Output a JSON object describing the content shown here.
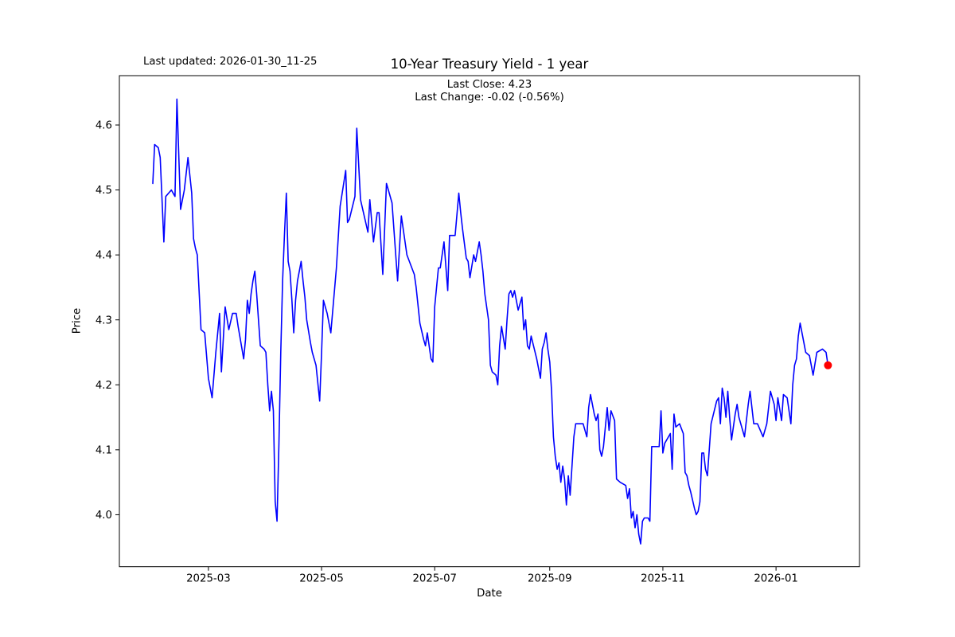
{
  "header": {
    "last_updated": "Last updated: 2026-01-30_11-25",
    "title": "10-Year Treasury Yield - 1 year",
    "annotation_line1": "Last Close: 4.23",
    "annotation_line2": "Last Change: -0.02 (-0.56%)"
  },
  "chart_data": {
    "type": "line",
    "title": "10-Year Treasury Yield - 1 year",
    "xlabel": "Date",
    "ylabel": "Price",
    "last_close": 4.23,
    "last_change": "-0.02 (-0.56%)",
    "grid": false,
    "legend": "none",
    "line_color": "#0000ff",
    "last_point_color": "#ff0000",
    "frame_color": "#000000",
    "background_color": "#ffffff",
    "ylim": [
      3.92,
      4.676
    ],
    "xlim": [
      "2025-01-12",
      "2026-02-15"
    ],
    "y_ticks": [
      4.0,
      4.1,
      4.2,
      4.3,
      4.4,
      4.5,
      4.6
    ],
    "x_ticks": [
      {
        "label": "2025-03",
        "date": "2025-03-01"
      },
      {
        "label": "2025-05",
        "date": "2025-05-01"
      },
      {
        "label": "2025-07",
        "date": "2025-07-01"
      },
      {
        "label": "2025-09",
        "date": "2025-09-01"
      },
      {
        "label": "2025-11",
        "date": "2025-11-01"
      },
      {
        "label": "2026-01",
        "date": "2026-01-01"
      }
    ],
    "series": [
      {
        "name": "10-Year Treasury Yield",
        "points": [
          [
            "2025-01-30",
            4.51
          ],
          [
            "2025-01-31",
            4.57
          ],
          [
            "2025-02-02",
            4.565
          ],
          [
            "2025-02-03",
            4.55
          ],
          [
            "2025-02-05",
            4.42
          ],
          [
            "2025-02-06",
            4.49
          ],
          [
            "2025-02-09",
            4.5
          ],
          [
            "2025-02-11",
            4.49
          ],
          [
            "2025-02-12",
            4.64
          ],
          [
            "2025-02-14",
            4.47
          ],
          [
            "2025-02-16",
            4.5
          ],
          [
            "2025-02-18",
            4.55
          ],
          [
            "2025-02-20",
            4.495
          ],
          [
            "2025-02-21",
            4.425
          ],
          [
            "2025-02-22",
            4.41
          ],
          [
            "2025-02-23",
            4.4
          ],
          [
            "2025-02-25",
            4.285
          ],
          [
            "2025-02-27",
            4.28
          ],
          [
            "2025-03-01",
            4.21
          ],
          [
            "2025-03-03",
            4.18
          ],
          [
            "2025-03-05",
            4.25
          ],
          [
            "2025-03-07",
            4.31
          ],
          [
            "2025-03-08",
            4.22
          ],
          [
            "2025-03-10",
            4.32
          ],
          [
            "2025-03-12",
            4.285
          ],
          [
            "2025-03-14",
            4.31
          ],
          [
            "2025-03-16",
            4.31
          ],
          [
            "2025-03-17",
            4.29
          ],
          [
            "2025-03-20",
            4.24
          ],
          [
            "2025-03-21",
            4.27
          ],
          [
            "2025-03-22",
            4.33
          ],
          [
            "2025-03-23",
            4.31
          ],
          [
            "2025-03-24",
            4.34
          ],
          [
            "2025-03-25",
            4.36
          ],
          [
            "2025-03-26",
            4.375
          ],
          [
            "2025-03-27",
            4.34
          ],
          [
            "2025-03-29",
            4.26
          ],
          [
            "2025-03-31",
            4.255
          ],
          [
            "2025-04-01",
            4.25
          ],
          [
            "2025-04-02",
            4.2
          ],
          [
            "2025-04-03",
            4.16
          ],
          [
            "2025-04-04",
            4.19
          ],
          [
            "2025-04-05",
            4.16
          ],
          [
            "2025-04-06",
            4.02
          ],
          [
            "2025-04-07",
            3.99
          ],
          [
            "2025-04-08",
            4.11
          ],
          [
            "2025-04-09",
            4.25
          ],
          [
            "2025-04-10",
            4.36
          ],
          [
            "2025-04-11",
            4.43
          ],
          [
            "2025-04-12",
            4.495
          ],
          [
            "2025-04-13",
            4.39
          ],
          [
            "2025-04-14",
            4.375
          ],
          [
            "2025-04-15",
            4.33
          ],
          [
            "2025-04-16",
            4.28
          ],
          [
            "2025-04-17",
            4.33
          ],
          [
            "2025-04-18",
            4.36
          ],
          [
            "2025-04-20",
            4.39
          ],
          [
            "2025-04-21",
            4.36
          ],
          [
            "2025-04-22",
            4.335
          ],
          [
            "2025-04-23",
            4.3
          ],
          [
            "2025-04-25",
            4.265
          ],
          [
            "2025-04-26",
            4.25
          ],
          [
            "2025-04-28",
            4.23
          ],
          [
            "2025-04-30",
            4.175
          ],
          [
            "2025-05-01",
            4.25
          ],
          [
            "2025-05-02",
            4.33
          ],
          [
            "2025-05-04",
            4.31
          ],
          [
            "2025-05-06",
            4.28
          ],
          [
            "2025-05-09",
            4.38
          ],
          [
            "2025-05-11",
            4.475
          ],
          [
            "2025-05-14",
            4.53
          ],
          [
            "2025-05-15",
            4.45
          ],
          [
            "2025-05-16",
            4.455
          ],
          [
            "2025-05-19",
            4.49
          ],
          [
            "2025-05-20",
            4.595
          ],
          [
            "2025-05-22",
            4.485
          ],
          [
            "2025-05-26",
            4.435
          ],
          [
            "2025-05-27",
            4.485
          ],
          [
            "2025-05-29",
            4.42
          ],
          [
            "2025-05-31",
            4.465
          ],
          [
            "2025-06-01",
            4.465
          ],
          [
            "2025-06-03",
            4.37
          ],
          [
            "2025-06-05",
            4.51
          ],
          [
            "2025-06-06",
            4.5
          ],
          [
            "2025-06-08",
            4.48
          ],
          [
            "2025-06-11",
            4.36
          ],
          [
            "2025-06-13",
            4.46
          ],
          [
            "2025-06-16",
            4.4
          ],
          [
            "2025-06-20",
            4.37
          ],
          [
            "2025-06-21",
            4.35
          ],
          [
            "2025-06-23",
            4.295
          ],
          [
            "2025-06-25",
            4.27
          ],
          [
            "2025-06-26",
            4.26
          ],
          [
            "2025-06-27",
            4.28
          ],
          [
            "2025-06-29",
            4.24
          ],
          [
            "2025-06-30",
            4.235
          ],
          [
            "2025-07-01",
            4.32
          ],
          [
            "2025-07-03",
            4.38
          ],
          [
            "2025-07-04",
            4.38
          ],
          [
            "2025-07-06",
            4.42
          ],
          [
            "2025-07-08",
            4.345
          ],
          [
            "2025-07-09",
            4.43
          ],
          [
            "2025-07-12",
            4.43
          ],
          [
            "2025-07-14",
            4.495
          ],
          [
            "2025-07-15",
            4.465
          ],
          [
            "2025-07-16",
            4.44
          ],
          [
            "2025-07-18",
            4.395
          ],
          [
            "2025-07-19",
            4.39
          ],
          [
            "2025-07-20",
            4.365
          ],
          [
            "2025-07-22",
            4.4
          ],
          [
            "2025-07-23",
            4.39
          ],
          [
            "2025-07-25",
            4.42
          ],
          [
            "2025-07-26",
            4.4
          ],
          [
            "2025-07-27",
            4.375
          ],
          [
            "2025-07-28",
            4.34
          ],
          [
            "2025-07-30",
            4.3
          ],
          [
            "2025-07-31",
            4.23
          ],
          [
            "2025-08-01",
            4.22
          ],
          [
            "2025-08-03",
            4.215
          ],
          [
            "2025-08-04",
            4.2
          ],
          [
            "2025-08-05",
            4.26
          ],
          [
            "2025-08-06",
            4.29
          ],
          [
            "2025-08-08",
            4.255
          ],
          [
            "2025-08-09",
            4.3
          ],
          [
            "2025-08-10",
            4.34
          ],
          [
            "2025-08-11",
            4.345
          ],
          [
            "2025-08-12",
            4.335
          ],
          [
            "2025-08-13",
            4.345
          ],
          [
            "2025-08-15",
            4.315
          ],
          [
            "2025-08-17",
            4.335
          ],
          [
            "2025-08-18",
            4.285
          ],
          [
            "2025-08-19",
            4.3
          ],
          [
            "2025-08-20",
            4.26
          ],
          [
            "2025-08-21",
            4.255
          ],
          [
            "2025-08-22",
            4.275
          ],
          [
            "2025-08-25",
            4.24
          ],
          [
            "2025-08-27",
            4.21
          ],
          [
            "2025-08-28",
            4.255
          ],
          [
            "2025-08-29",
            4.265
          ],
          [
            "2025-08-30",
            4.28
          ],
          [
            "2025-08-31",
            4.255
          ],
          [
            "2025-09-01",
            4.235
          ],
          [
            "2025-09-02",
            4.19
          ],
          [
            "2025-09-03",
            4.12
          ],
          [
            "2025-09-04",
            4.09
          ],
          [
            "2025-09-05",
            4.07
          ],
          [
            "2025-09-06",
            4.08
          ],
          [
            "2025-09-07",
            4.05
          ],
          [
            "2025-09-08",
            4.075
          ],
          [
            "2025-09-09",
            4.055
          ],
          [
            "2025-09-10",
            4.015
          ],
          [
            "2025-09-11",
            4.06
          ],
          [
            "2025-09-12",
            4.03
          ],
          [
            "2025-09-14",
            4.12
          ],
          [
            "2025-09-15",
            4.14
          ],
          [
            "2025-09-19",
            4.14
          ],
          [
            "2025-09-21",
            4.12
          ],
          [
            "2025-09-22",
            4.165
          ],
          [
            "2025-09-23",
            4.185
          ],
          [
            "2025-09-25",
            4.155
          ],
          [
            "2025-09-26",
            4.145
          ],
          [
            "2025-09-27",
            4.155
          ],
          [
            "2025-09-28",
            4.1
          ],
          [
            "2025-09-29",
            4.09
          ],
          [
            "2025-09-30",
            4.105
          ],
          [
            "2025-10-02",
            4.165
          ],
          [
            "2025-10-03",
            4.13
          ],
          [
            "2025-10-04",
            4.16
          ],
          [
            "2025-10-06",
            4.145
          ],
          [
            "2025-10-07",
            4.055
          ],
          [
            "2025-10-09",
            4.05
          ],
          [
            "2025-10-12",
            4.045
          ],
          [
            "2025-10-13",
            4.025
          ],
          [
            "2025-10-14",
            4.04
          ],
          [
            "2025-10-15",
            3.995
          ],
          [
            "2025-10-16",
            4.005
          ],
          [
            "2025-10-17",
            3.98
          ],
          [
            "2025-10-18",
            4.0
          ],
          [
            "2025-10-19",
            3.97
          ],
          [
            "2025-10-20",
            3.955
          ],
          [
            "2025-10-21",
            3.99
          ],
          [
            "2025-10-22",
            3.995
          ],
          [
            "2025-10-24",
            3.995
          ],
          [
            "2025-10-25",
            3.99
          ],
          [
            "2025-10-26",
            4.105
          ],
          [
            "2025-10-30",
            4.105
          ],
          [
            "2025-10-31",
            4.16
          ],
          [
            "2025-11-01",
            4.095
          ],
          [
            "2025-11-02",
            4.11
          ],
          [
            "2025-11-05",
            4.125
          ],
          [
            "2025-11-06",
            4.07
          ],
          [
            "2025-11-07",
            4.155
          ],
          [
            "2025-11-08",
            4.135
          ],
          [
            "2025-11-10",
            4.14
          ],
          [
            "2025-11-12",
            4.125
          ],
          [
            "2025-11-13",
            4.065
          ],
          [
            "2025-11-14",
            4.06
          ],
          [
            "2025-11-15",
            4.045
          ],
          [
            "2025-11-16",
            4.035
          ],
          [
            "2025-11-18",
            4.01
          ],
          [
            "2025-11-19",
            4.0
          ],
          [
            "2025-11-20",
            4.005
          ],
          [
            "2025-11-21",
            4.02
          ],
          [
            "2025-11-22",
            4.095
          ],
          [
            "2025-11-23",
            4.095
          ],
          [
            "2025-11-24",
            4.07
          ],
          [
            "2025-11-25",
            4.06
          ],
          [
            "2025-11-27",
            4.14
          ],
          [
            "2025-11-30",
            4.175
          ],
          [
            "2025-12-01",
            4.18
          ],
          [
            "2025-12-02",
            4.14
          ],
          [
            "2025-12-03",
            4.195
          ],
          [
            "2025-12-04",
            4.18
          ],
          [
            "2025-12-05",
            4.15
          ],
          [
            "2025-12-06",
            4.19
          ],
          [
            "2025-12-07",
            4.15
          ],
          [
            "2025-12-08",
            4.115
          ],
          [
            "2025-12-10",
            4.155
          ],
          [
            "2025-12-11",
            4.17
          ],
          [
            "2025-12-12",
            4.15
          ],
          [
            "2025-12-15",
            4.12
          ],
          [
            "2025-12-17",
            4.17
          ],
          [
            "2025-12-18",
            4.19
          ],
          [
            "2025-12-20",
            4.14
          ],
          [
            "2025-12-22",
            4.14
          ],
          [
            "2025-12-25",
            4.12
          ],
          [
            "2025-12-27",
            4.14
          ],
          [
            "2025-12-29",
            4.19
          ],
          [
            "2025-12-31",
            4.17
          ],
          [
            "2026-01-01",
            4.145
          ],
          [
            "2026-01-02",
            4.18
          ],
          [
            "2026-01-04",
            4.145
          ],
          [
            "2026-01-05",
            4.185
          ],
          [
            "2026-01-07",
            4.18
          ],
          [
            "2026-01-09",
            4.14
          ],
          [
            "2026-01-10",
            4.2
          ],
          [
            "2026-01-11",
            4.23
          ],
          [
            "2026-01-12",
            4.24
          ],
          [
            "2026-01-13",
            4.275
          ],
          [
            "2026-01-14",
            4.295
          ],
          [
            "2026-01-16",
            4.265
          ],
          [
            "2026-01-17",
            4.25
          ],
          [
            "2026-01-19",
            4.245
          ],
          [
            "2026-01-20",
            4.23
          ],
          [
            "2026-01-21",
            4.215
          ],
          [
            "2026-01-23",
            4.25
          ],
          [
            "2026-01-26",
            4.255
          ],
          [
            "2026-01-28",
            4.25
          ],
          [
            "2026-01-29",
            4.23
          ]
        ]
      }
    ]
  }
}
